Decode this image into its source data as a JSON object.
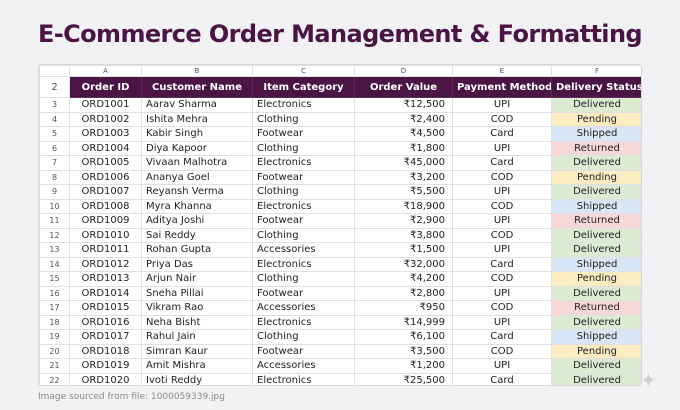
{
  "page": {
    "title": "E-Commerce Order Management & Formatting",
    "footnote": "Image sourced from file: 1000059339.jpg",
    "sparkle_icon": "sparkle-icon"
  },
  "colors": {
    "title": "#4a1445",
    "header_bg": "#4a1445",
    "header_text": "#ffffff",
    "status_delivered": "#dcebd2",
    "status_pending": "#fbecc2",
    "status_shipped": "#d8e6f5",
    "status_returned": "#f6d8d8"
  },
  "sheet": {
    "column_letters": [
      "A",
      "B",
      "C",
      "D",
      "E",
      "F"
    ],
    "header_row_number": "2",
    "headers": [
      "Order ID",
      "Customer Name",
      "Item Category",
      "Order Value",
      "Payment Method",
      "Delivery Status"
    ],
    "rows": [
      {
        "rn": "3",
        "id": "ORD1001",
        "name": "Aarav Sharma",
        "cat": "Electronics",
        "val": "₹12,500",
        "pay": "UPI",
        "status": "Delivered"
      },
      {
        "rn": "4",
        "id": "ORD1002",
        "name": "Ishita Mehra",
        "cat": "Clothing",
        "val": "₹2,400",
        "pay": "COD",
        "status": "Pending"
      },
      {
        "rn": "5",
        "id": "ORD1003",
        "name": "Kabir Singh",
        "cat": "Footwear",
        "val": "₹4,500",
        "pay": "Card",
        "status": "Shipped"
      },
      {
        "rn": "6",
        "id": "ORD1004",
        "name": "Diya Kapoor",
        "cat": "Clothing",
        "val": "₹1,800",
        "pay": "UPI",
        "status": "Returned"
      },
      {
        "rn": "7",
        "id": "ORD1005",
        "name": "Vivaan Malhotra",
        "cat": "Electronics",
        "val": "₹45,000",
        "pay": "Card",
        "status": "Delivered"
      },
      {
        "rn": "8",
        "id": "ORD1006",
        "name": "Ananya Goel",
        "cat": "Footwear",
        "val": "₹3,200",
        "pay": "COD",
        "status": "Pending"
      },
      {
        "rn": "9",
        "id": "ORD1007",
        "name": "Reyansh Verma",
        "cat": "Clothing",
        "val": "₹5,500",
        "pay": "UPI",
        "status": "Delivered"
      },
      {
        "rn": "10",
        "id": "ORD1008",
        "name": "Myra Khanna",
        "cat": "Electronics",
        "val": "₹18,900",
        "pay": "COD",
        "status": "Shipped"
      },
      {
        "rn": "11",
        "id": "ORD1009",
        "name": "Aditya Joshi",
        "cat": "Footwear",
        "val": "₹2,900",
        "pay": "UPI",
        "status": "Returned"
      },
      {
        "rn": "12",
        "id": "ORD1010",
        "name": "Sai Reddy",
        "cat": "Clothing",
        "val": "₹3,800",
        "pay": "COD",
        "status": "Delivered"
      },
      {
        "rn": "13",
        "id": "ORD1011",
        "name": "Rohan Gupta",
        "cat": "Accessories",
        "val": "₹1,500",
        "pay": "UPI",
        "status": "Delivered"
      },
      {
        "rn": "14",
        "id": "ORD1012",
        "name": "Priya Das",
        "cat": "Electronics",
        "val": "₹32,000",
        "pay": "Card",
        "status": "Shipped"
      },
      {
        "rn": "15",
        "id": "ORD1013",
        "name": "Arjun Nair",
        "cat": "Clothing",
        "val": "₹4,200",
        "pay": "COD",
        "status": "Pending"
      },
      {
        "rn": "16",
        "id": "ORD1014",
        "name": "Sneha Pillai",
        "cat": "Footwear",
        "val": "₹2,800",
        "pay": "UPI",
        "status": "Delivered"
      },
      {
        "rn": "17",
        "id": "ORD1015",
        "name": "Vikram Rao",
        "cat": "Accessories",
        "val": "₹950",
        "pay": "COD",
        "status": "Returned"
      },
      {
        "rn": "18",
        "id": "ORD1016",
        "name": "Neha Bisht",
        "cat": "Electronics",
        "val": "₹14,999",
        "pay": "UPI",
        "status": "Delivered"
      },
      {
        "rn": "19",
        "id": "ORD1017",
        "name": "Rahul Jain",
        "cat": "Clothing",
        "val": "₹6,100",
        "pay": "Card",
        "status": "Shipped"
      },
      {
        "rn": "20",
        "id": "ORD1018",
        "name": "Simran Kaur",
        "cat": "Footwear",
        "val": "₹3,500",
        "pay": "COD",
        "status": "Pending"
      },
      {
        "rn": "21",
        "id": "ORD1019",
        "name": "Amit Mishra",
        "cat": "Accessories",
        "val": "₹1,200",
        "pay": "UPI",
        "status": "Delivered"
      },
      {
        "rn": "22",
        "id": "ORD1020",
        "name": "Ivoti Reddy",
        "cat": "Electronics",
        "val": "₹25,500",
        "pay": "Card",
        "status": "Delivered"
      }
    ]
  }
}
